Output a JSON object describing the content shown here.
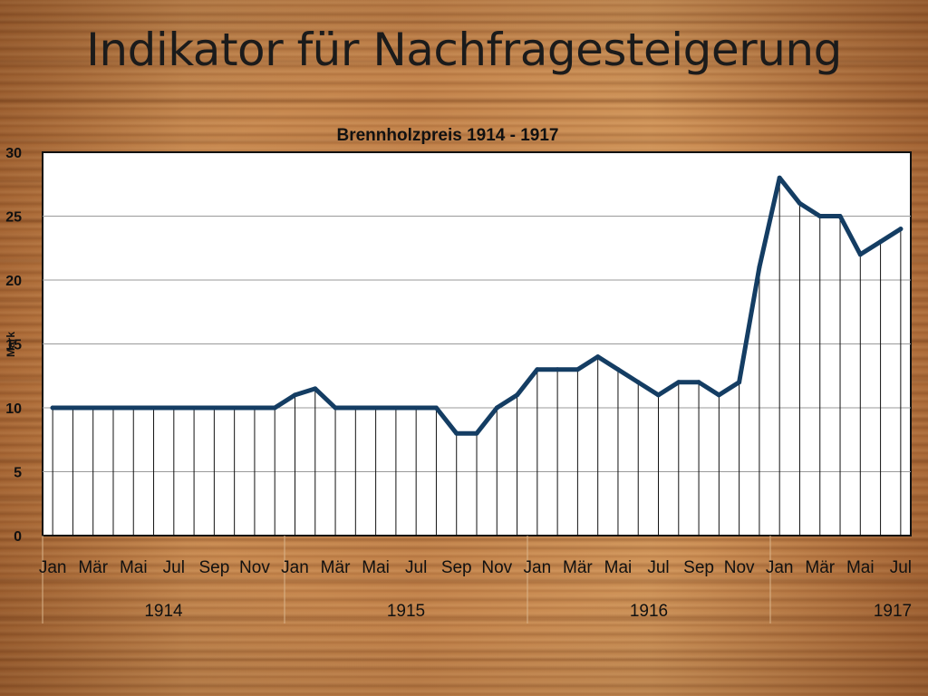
{
  "slide": {
    "title": "Indikator für Nachfragesteigerung"
  },
  "chart_data": {
    "type": "line",
    "title": "Brennholzpreis 1914 - 1917",
    "ylabel": "Mark",
    "xlabel": "",
    "ylim": [
      0,
      30
    ],
    "yticks": [
      0,
      5,
      10,
      15,
      20,
      25,
      30
    ],
    "grid": true,
    "legend": "none",
    "line_color": "#143d63",
    "x": [
      "Jan 1914",
      "Feb 1914",
      "Mär 1914",
      "Apr 1914",
      "Mai 1914",
      "Jun 1914",
      "Jul 1914",
      "Aug 1914",
      "Sep 1914",
      "Okt 1914",
      "Nov 1914",
      "Dez 1914",
      "Jan 1915",
      "Feb 1915",
      "Mär 1915",
      "Apr 1915",
      "Mai 1915",
      "Jun 1915",
      "Jul 1915",
      "Aug 1915",
      "Sep 1915",
      "Okt 1915",
      "Nov 1915",
      "Dez 1915",
      "Jan 1916",
      "Feb 1916",
      "Mär 1916",
      "Apr 1916",
      "Mai 1916",
      "Jun 1916",
      "Jul 1916",
      "Aug 1916",
      "Sep 1916",
      "Okt 1916",
      "Nov 1916",
      "Dez 1916",
      "Jan 1917",
      "Feb 1917",
      "Mär 1917",
      "Apr 1917",
      "Mai 1917",
      "Jun 1917",
      "Jul 1917"
    ],
    "values": [
      10,
      10,
      10,
      10,
      10,
      10,
      10,
      10,
      10,
      10,
      10,
      10,
      11,
      11.5,
      10,
      10,
      10,
      10,
      10,
      10,
      8,
      8,
      10,
      11,
      13,
      13,
      13,
      14,
      13,
      12,
      11,
      12,
      12,
      11,
      12,
      21,
      28,
      26,
      25,
      25,
      22,
      23,
      24
    ],
    "month_tick_labels": [
      "Jan",
      "Mär",
      "Mai",
      "Jul",
      "Sep",
      "Nov"
    ],
    "month_tick_labels_1917": [
      "Jan",
      "Mär",
      "Mai",
      "Jul"
    ],
    "years": [
      "1914",
      "1915",
      "1916",
      "1917"
    ]
  }
}
